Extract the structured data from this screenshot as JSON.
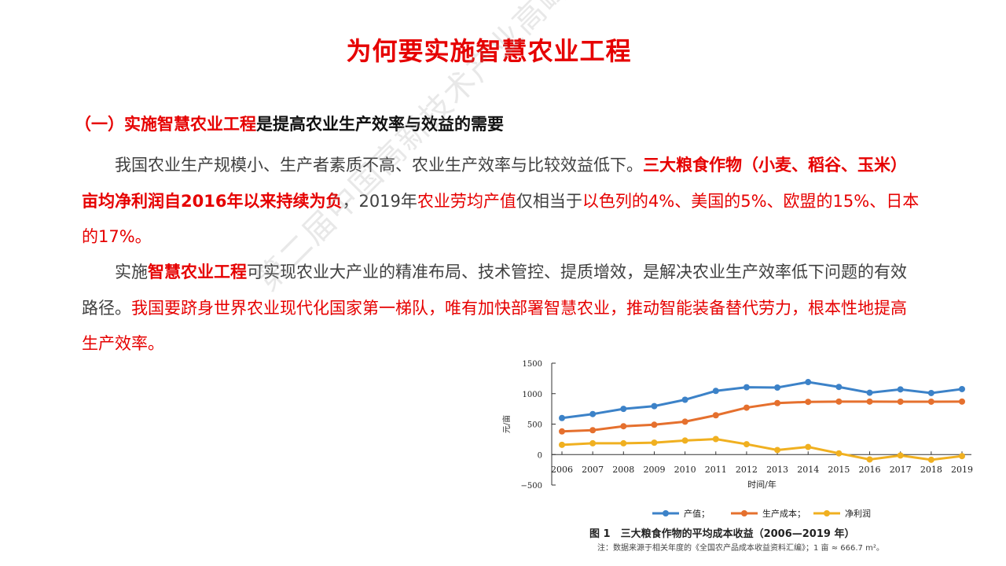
{
  "title": "为何要实施智慧农业工程",
  "section": {
    "prefix": "（一）",
    "red_part": "实施智慧农业工程",
    "rest": "是提高农业生产效率与效益的需要"
  },
  "paragraph1": {
    "s1": "我国农业生产规模小、生产者素质不高、农业生产效率与比较效益低下。",
    "s2": "三大粮食作物（小麦、稻谷、玉米）亩均净利润自2016年以来持续为负",
    "s3": "，2019年",
    "s4": "农业劳均产值",
    "s5": "仅相当于",
    "s6": "以色列的4%、美国的5%、欧盟的15%、日本的17%。"
  },
  "paragraph2": {
    "s1": "实施",
    "s2": "智慧农业工程",
    "s3": "可实现农业大产业的精准布局、技术管控、提质增效，是解决农业生产效率低下问题的有效路径。",
    "s4": "我国要跻身世界农业现代化国家第一梯队，唯有加快部署智慧农业，推动智能装备替代劳力，根本性地提高生产效率。"
  },
  "watermark": "第二届中国高新技术产业高峰论坛",
  "caption": "图 1　三大粮食作物的平均成本收益（2006—2019 年）",
  "note": "注：数据来源于相关年度的《全国农产品成本收益资料汇编》；1 亩 ≈ 666.7 m²。",
  "chart_data": {
    "type": "line",
    "x": [
      2006,
      2007,
      2008,
      2009,
      2010,
      2011,
      2012,
      2013,
      2014,
      2015,
      2016,
      2017,
      2018,
      2019
    ],
    "series": [
      {
        "name": "产值；",
        "color": "#3c82c8",
        "values": [
          600,
          665,
          750,
          795,
          900,
          1045,
          1105,
          1100,
          1190,
          1110,
          1015,
          1070,
          1010,
          1075
        ]
      },
      {
        "name": "生产成本；",
        "color": "#e5702e",
        "values": [
          380,
          400,
          465,
          490,
          540,
          645,
          770,
          845,
          865,
          870,
          870,
          868,
          868,
          870
        ]
      },
      {
        "name": "净利润",
        "color": "#f0b020",
        "values": [
          160,
          185,
          185,
          195,
          230,
          255,
          170,
          75,
          125,
          20,
          -80,
          -15,
          -85,
          -25
        ]
      }
    ],
    "ylim": [
      -500,
      1500
    ],
    "yticks": [
      -500,
      0,
      500,
      1000,
      1500
    ],
    "xlabel": "时间/年",
    "ylabel": "元/亩",
    "legend_position": "bottom"
  }
}
